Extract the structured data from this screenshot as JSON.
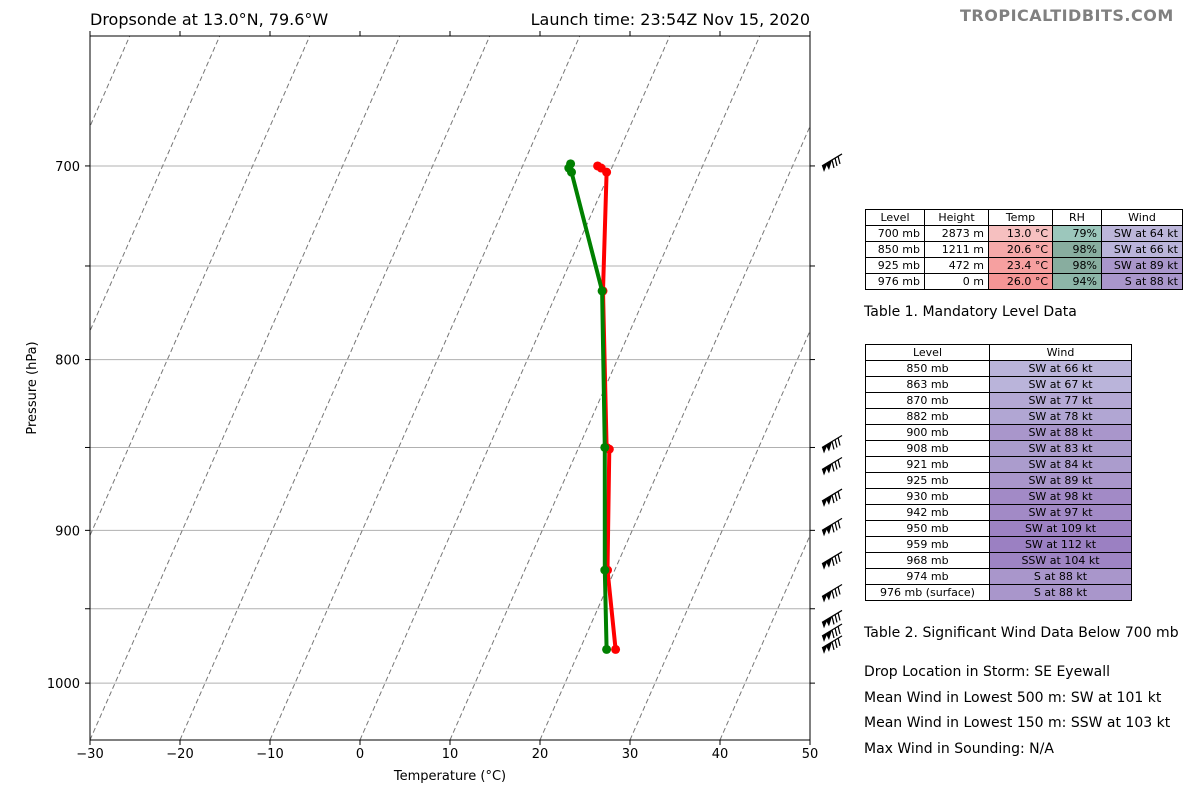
{
  "header": {
    "title_left": "Dropsonde at 13.0°N, 79.6°W",
    "title_right": "Launch time: 23:54Z Nov 15, 2020",
    "brand": "TROPICALTIDBITS.COM"
  },
  "chart_data": {
    "type": "line",
    "xlabel": "Temperature (°C)",
    "ylabel": "Pressure (hPa)",
    "xlim": [
      -30,
      50
    ],
    "ylim": [
      1040,
      640
    ],
    "y_scale": "log",
    "x_ticks": [
      -30,
      -20,
      -10,
      0,
      10,
      20,
      30,
      40,
      50
    ],
    "y_ticks": [
      700,
      800,
      900,
      1000
    ],
    "y_gridlines": [
      700,
      750,
      800,
      850,
      900,
      950,
      1000
    ],
    "skewed_isotherms": "dashed gray",
    "colors": {
      "temperature": "#ff0000",
      "dewpoint": "#008000",
      "grid": "#b0b0b0"
    },
    "series": [
      {
        "key": "temperature",
        "points": [
          [
            26.4,
            700
          ],
          [
            26.8,
            701
          ],
          [
            27.4,
            703
          ],
          [
            27.0,
            763
          ],
          [
            27.4,
            850
          ],
          [
            27.7,
            851
          ],
          [
            27.5,
            925
          ],
          [
            28.4,
            977
          ]
        ]
      },
      {
        "key": "dewpoint",
        "points": [
          [
            23.4,
            699
          ],
          [
            23.2,
            701
          ],
          [
            23.5,
            703
          ],
          [
            26.9,
            763
          ],
          [
            27.2,
            850
          ],
          [
            27.2,
            925
          ],
          [
            27.4,
            977
          ]
        ]
      }
    ],
    "wind_barbs_levels": [
      700,
      850,
      863,
      882,
      900,
      921,
      942,
      959,
      968,
      976
    ]
  },
  "table1": {
    "caption": "Table 1. Mandatory Level Data",
    "headers": [
      "Level",
      "Height",
      "Temp",
      "RH",
      "Wind"
    ],
    "rows": [
      [
        "700 mb",
        "2873 m",
        "13.0 °C",
        "79%",
        "SW at 64 kt"
      ],
      [
        "850 mb",
        "1211 m",
        "20.6 °C",
        "98%",
        "SW at 66 kt"
      ],
      [
        "925 mb",
        "472 m",
        "23.4 °C",
        "98%",
        "SW at 89 kt"
      ],
      [
        "976 mb",
        "0 m",
        "26.0 °C",
        "94%",
        "S at 88 kt"
      ]
    ],
    "temp_colors": [
      "#f6c0c0",
      "#f6a9a9",
      "#f6a0a0",
      "#f59595"
    ],
    "rh_colors": [
      "#9cc7bc",
      "#88ad9f",
      "#88ad9f",
      "#8db6a8"
    ],
    "wind_colors": [
      "#bcb6da",
      "#bab4da",
      "#a996cb",
      "#a996cb"
    ]
  },
  "table2": {
    "caption": "Table 2. Significant Wind Data Below 700 mb",
    "headers": [
      "Level",
      "Wind"
    ],
    "rows": [
      [
        "850 mb",
        "SW at 66 kt"
      ],
      [
        "863 mb",
        "SW at 67 kt"
      ],
      [
        "870 mb",
        "SW at 77 kt"
      ],
      [
        "882 mb",
        "SW at 78 kt"
      ],
      [
        "900 mb",
        "SW at 88 kt"
      ],
      [
        "908 mb",
        "SW at 83 kt"
      ],
      [
        "921 mb",
        "SW at 84 kt"
      ],
      [
        "925 mb",
        "SW at 89 kt"
      ],
      [
        "930 mb",
        "SW at 98 kt"
      ],
      [
        "942 mb",
        "SW at 97 kt"
      ],
      [
        "950 mb",
        "SW at 109 kt"
      ],
      [
        "959 mb",
        "SW at 112 kt"
      ],
      [
        "968 mb",
        "SSW at 104 kt"
      ],
      [
        "974 mb",
        "S at 88 kt"
      ],
      [
        "976 mb (surface)",
        "S at 88 kt"
      ]
    ],
    "wind_colors": [
      "#bab4da",
      "#bab4da",
      "#b4a8d4",
      "#b1a6d3",
      "#a996cb",
      "#ab9ccd",
      "#ab9ccd",
      "#a996cb",
      "#a28ac6",
      "#a28ac6",
      "#9d82c3",
      "#9b80c2",
      "#9e84c4",
      "#a996cb",
      "#a996cb"
    ]
  },
  "info": {
    "lines": [
      "Drop Location in Storm: SE Eyewall",
      "Mean Wind in Lowest 500 m:  SW at 101 kt",
      "Mean Wind in Lowest 150 m:  SSW at 103 kt",
      "Max Wind in Sounding:  N/A"
    ]
  }
}
